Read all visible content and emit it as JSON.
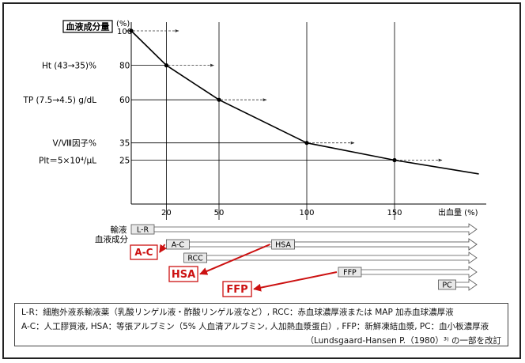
{
  "chart_data": {
    "type": "line",
    "ylabel": "血液成分量",
    "yunit": "(%)",
    "ytop_label": "100",
    "xlabel": "出血量 (%)",
    "series": [
      {
        "points": [
          [
            0,
            100
          ],
          [
            20,
            80
          ],
          [
            50,
            60
          ],
          [
            100,
            35
          ],
          [
            150,
            25
          ],
          [
            198,
            17
          ]
        ]
      }
    ],
    "y_annotations": [
      {
        "label": "Ht (43→35)%",
        "tick": "80",
        "x": 20,
        "y": 80
      },
      {
        "label": "TP (7.5→4.5) g/dL",
        "tick": "60",
        "x": 50,
        "y": 60
      },
      {
        "label": "Ⅴ/Ⅷ因子%",
        "tick": "35",
        "x": 100,
        "y": 35
      },
      {
        "label": "Plt＝5×10⁴/μL",
        "tick": "25",
        "x": 150,
        "y": 25
      }
    ],
    "xticks": [
      20,
      50,
      100,
      150
    ],
    "xlim": [
      0,
      198
    ],
    "ylim": [
      0,
      100
    ]
  },
  "components": {
    "label_line1": "輸液",
    "label_line2": "血液成分",
    "bars": [
      {
        "label": "L-R",
        "start": 0
      },
      {
        "label": "A-C",
        "start": 20
      },
      {
        "label": "HSA",
        "start": 80
      },
      {
        "label": "RCC",
        "start": 30
      },
      {
        "label": "FFP",
        "start": 118
      },
      {
        "label": "PC",
        "start": 175
      }
    ],
    "callouts": [
      {
        "label": "A-C",
        "target": "A-C"
      },
      {
        "label": "HSA",
        "target": "HSA"
      },
      {
        "label": "FFP",
        "target": "FFP"
      }
    ]
  },
  "colors": {
    "callout_red": "#cc1111",
    "line": "#000000",
    "guide": "#777777"
  },
  "legend": {
    "line1": "L-R：細胞外液系輸液薬（乳酸リンゲル液・酢酸リンゲル液など）, RCC：赤血球濃厚液または MAP 加赤血球濃厚液",
    "line2": "A-C：人工膠質液, HSA：等張アルブミン（5% 人血清アルブミン, 人加熱血漿蛋白）, FFP：新鮮凍結血漿, PC：血小板濃厚液",
    "line3": "（Lundsgaard-Hansen P.（1980）³⁾ の一部を改訂"
  }
}
